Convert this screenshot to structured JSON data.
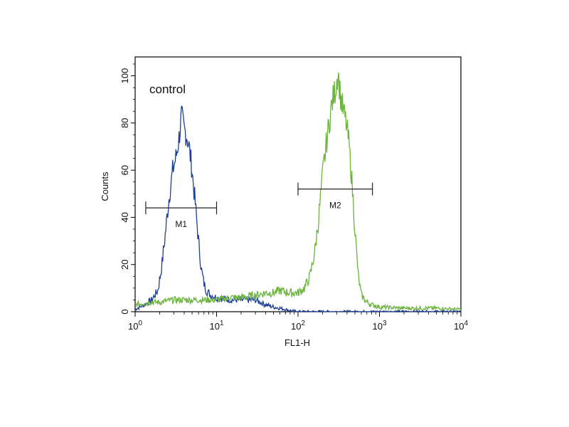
{
  "chart_data": {
    "type": "line",
    "title": "",
    "annotation": "control",
    "xlabel": "FL1-H",
    "ylabel": "Counts",
    "x_scale": "log",
    "xlim": [
      1,
      10000
    ],
    "ylim": [
      0,
      108
    ],
    "x_ticks": [
      {
        "value": 1,
        "base": "10",
        "exp": "0"
      },
      {
        "value": 10,
        "base": "10",
        "exp": "1"
      },
      {
        "value": 100,
        "base": "10",
        "exp": "2"
      },
      {
        "value": 1000,
        "base": "10",
        "exp": "3"
      },
      {
        "value": 10000,
        "base": "10",
        "exp": "4"
      }
    ],
    "y_ticks": [
      0,
      20,
      40,
      60,
      80,
      100
    ],
    "series": [
      {
        "color": "#1f3f96",
        "points": [
          [
            1,
            1
          ],
          [
            1.3,
            3
          ],
          [
            1.6,
            5
          ],
          [
            1.9,
            9
          ],
          [
            2.1,
            18
          ],
          [
            2.3,
            30
          ],
          [
            2.6,
            48
          ],
          [
            2.9,
            60
          ],
          [
            3.2,
            66
          ],
          [
            3.5,
            75
          ],
          [
            3.7,
            83
          ],
          [
            4.0,
            77
          ],
          [
            4.3,
            75
          ],
          [
            4.6,
            70
          ],
          [
            5.0,
            60
          ],
          [
            5.5,
            45
          ],
          [
            6.0,
            30
          ],
          [
            6.5,
            18
          ],
          [
            7.0,
            12
          ],
          [
            7.5,
            9
          ],
          [
            8.5,
            7
          ],
          [
            10,
            6
          ],
          [
            15,
            5
          ],
          [
            20,
            5
          ],
          [
            30,
            5
          ],
          [
            40,
            3
          ],
          [
            50,
            2
          ],
          [
            60,
            1.5
          ],
          [
            80,
            0.5
          ],
          [
            100,
            0
          ],
          [
            1000,
            0
          ],
          [
            10000,
            0
          ]
        ]
      },
      {
        "color": "#6db33f",
        "points": [
          [
            1,
            3
          ],
          [
            1.5,
            4
          ],
          [
            2,
            4
          ],
          [
            3,
            5
          ],
          [
            5,
            5
          ],
          [
            8,
            5
          ],
          [
            10,
            5
          ],
          [
            15,
            6
          ],
          [
            20,
            6
          ],
          [
            30,
            7
          ],
          [
            40,
            8
          ],
          [
            50,
            8
          ],
          [
            60,
            9
          ],
          [
            80,
            8
          ],
          [
            100,
            8
          ],
          [
            120,
            10
          ],
          [
            140,
            15
          ],
          [
            160,
            25
          ],
          [
            180,
            40
          ],
          [
            200,
            58
          ],
          [
            230,
            75
          ],
          [
            260,
            88
          ],
          [
            290,
            95
          ],
          [
            310,
            102
          ],
          [
            330,
            92
          ],
          [
            360,
            85
          ],
          [
            390,
            80
          ],
          [
            420,
            72
          ],
          [
            460,
            55
          ],
          [
            500,
            35
          ],
          [
            550,
            15
          ],
          [
            600,
            7
          ],
          [
            700,
            4
          ],
          [
            800,
            3
          ],
          [
            1000,
            2
          ],
          [
            2000,
            1.5
          ],
          [
            5000,
            1.5
          ],
          [
            10000,
            1
          ]
        ]
      }
    ],
    "markers": [
      {
        "label": "M1",
        "x_start": 1.35,
        "x_end": 10,
        "y": 44
      },
      {
        "label": "M2",
        "x_start": 100,
        "x_end": 820,
        "y": 52
      }
    ]
  }
}
